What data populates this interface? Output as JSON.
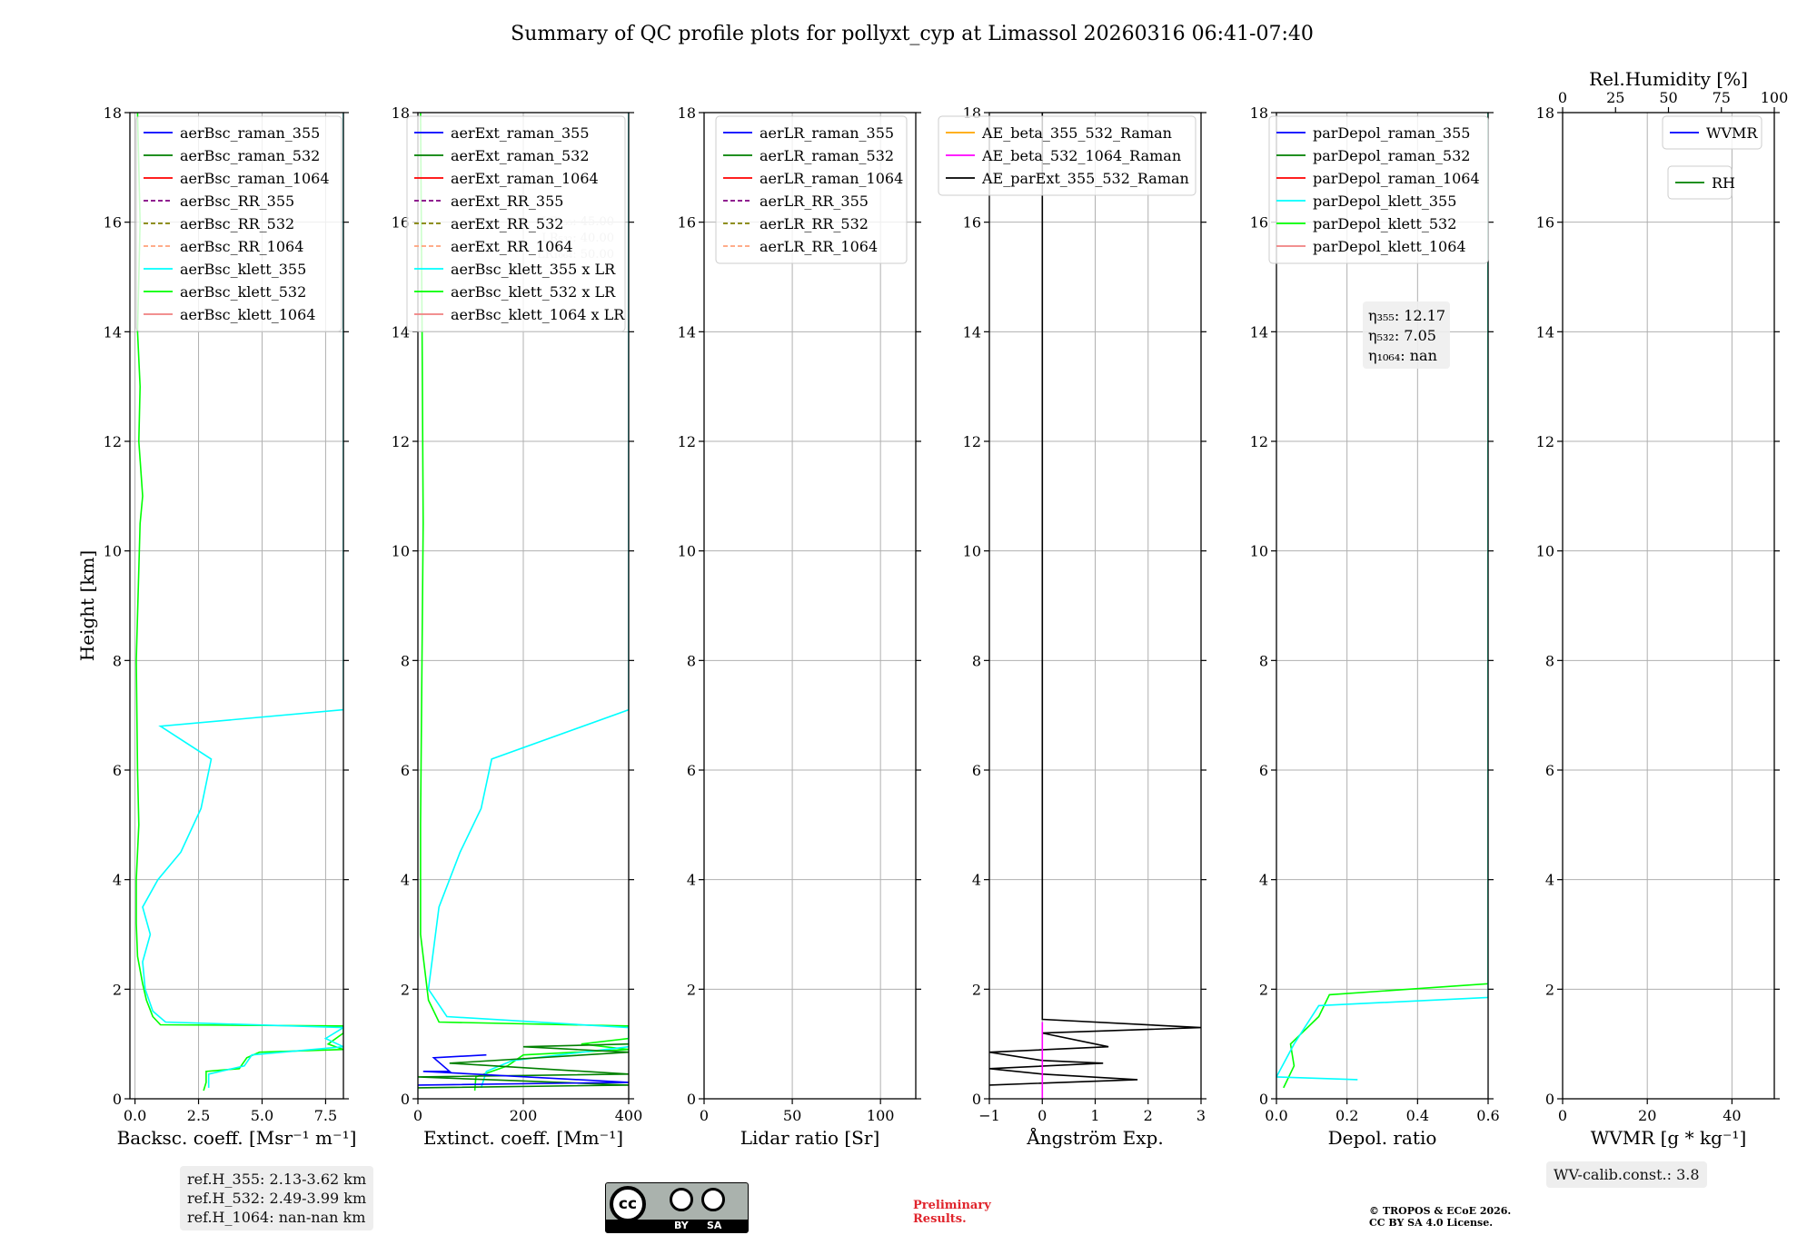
{
  "title": "Summary of QC profile plots for pollyxt_cyp at Limassol 20260316 06:41-07:40",
  "ylabel": "Height [km]",
  "panels": [
    {
      "xlabel": "Backsc. coeff. [Msr⁻¹ m⁻¹]",
      "xlim": [
        -0.2,
        8.2
      ],
      "xticks": [
        "0.0",
        "2.5",
        "5.0",
        "7.5"
      ],
      "legend": [
        {
          "label": "aerBsc_raman_355",
          "color": "#0000ff",
          "dash": false
        },
        {
          "label": "aerBsc_raman_532",
          "color": "#008000",
          "dash": false
        },
        {
          "label": "aerBsc_raman_1064",
          "color": "#ff0000",
          "dash": false
        },
        {
          "label": "aerBsc_RR_355",
          "color": "#800080",
          "dash": true
        },
        {
          "label": "aerBsc_RR_532",
          "color": "#808000",
          "dash": true
        },
        {
          "label": "aerBsc_RR_1064",
          "color": "#ffa07a",
          "dash": true
        },
        {
          "label": "aerBsc_klett_355",
          "color": "#00ffff",
          "dash": false
        },
        {
          "label": "aerBsc_klett_532",
          "color": "#00ff00",
          "dash": false
        },
        {
          "label": "aerBsc_klett_1064",
          "color": "#f08080",
          "dash": false
        }
      ]
    },
    {
      "xlabel": "Extinct. coeff. [Mm⁻¹]",
      "xlim": [
        0,
        400
      ],
      "xticks": [
        "0",
        "200",
        "400"
      ],
      "legend": [
        {
          "label": "aerExt_raman_355",
          "color": "#0000ff",
          "dash": false
        },
        {
          "label": "aerExt_raman_532",
          "color": "#008000",
          "dash": false
        },
        {
          "label": "aerExt_raman_1064",
          "color": "#ff0000",
          "dash": false
        },
        {
          "label": "aerExt_RR_355",
          "color": "#800080",
          "dash": true
        },
        {
          "label": "aerExt_RR_532",
          "color": "#808000",
          "dash": true
        },
        {
          "label": "aerExt_RR_1064",
          "color": "#ffa07a",
          "dash": true
        },
        {
          "label": "aerBsc_klett_355 x LR",
          "color": "#00ffff",
          "dash": false
        },
        {
          "label": "aerBsc_klett_532 x LR",
          "color": "#00ff00",
          "dash": false
        },
        {
          "label": "aerBsc_klett_1064 x LR",
          "color": "#f08080",
          "dash": false
        }
      ],
      "faint_lr": [
        "LR₃₅₅: 45.00",
        "LR₅₃₂: 40.00",
        "LR₁₀₆₄: 50.00"
      ]
    },
    {
      "xlabel": "Lidar ratio [Sr]",
      "xlim": [
        0,
        120
      ],
      "xticks": [
        "0",
        "50",
        "100"
      ],
      "legend": [
        {
          "label": "aerLR_raman_355",
          "color": "#0000ff",
          "dash": false
        },
        {
          "label": "aerLR_raman_532",
          "color": "#008000",
          "dash": false
        },
        {
          "label": "aerLR_raman_1064",
          "color": "#ff0000",
          "dash": false
        },
        {
          "label": "aerLR_RR_355",
          "color": "#800080",
          "dash": true
        },
        {
          "label": "aerLR_RR_532",
          "color": "#808000",
          "dash": true
        },
        {
          "label": "aerLR_RR_1064",
          "color": "#ffa07a",
          "dash": true
        }
      ]
    },
    {
      "xlabel": "Ångström Exp.",
      "xlim": [
        -1,
        3
      ],
      "xticks": [
        "−1",
        "0",
        "1",
        "2",
        "3"
      ],
      "legend": [
        {
          "label": "AE_beta_355_532_Raman",
          "color": "#ffa500",
          "dash": false
        },
        {
          "label": "AE_beta_532_1064_Raman",
          "color": "#ff00ff",
          "dash": false
        },
        {
          "label": "AE_parExt_355_532_Raman",
          "color": "#000000",
          "dash": false
        }
      ]
    },
    {
      "xlabel": "Depol. ratio",
      "xlim": [
        0,
        0.6
      ],
      "xticks": [
        "0.0",
        "0.2",
        "0.4",
        "0.6"
      ],
      "legend": [
        {
          "label": "parDepol_raman_355",
          "color": "#0000ff",
          "dash": false
        },
        {
          "label": "parDepol_raman_532",
          "color": "#008000",
          "dash": false
        },
        {
          "label": "parDepol_raman_1064",
          "color": "#ff0000",
          "dash": false
        },
        {
          "label": "parDepol_klett_355",
          "color": "#00ffff",
          "dash": false
        },
        {
          "label": "parDepol_klett_532",
          "color": "#00ff00",
          "dash": false
        },
        {
          "label": "parDepol_klett_1064",
          "color": "#f08080",
          "dash": false
        }
      ],
      "eta": [
        "η₃₅₅: 12.17",
        "η₅₃₂: 7.05",
        "η₁₀₆₄: nan"
      ]
    },
    {
      "xlabel": "WVMR [g * kg⁻¹]",
      "xlim": [
        0,
        50
      ],
      "xticks": [
        "0",
        "20",
        "40"
      ],
      "top_xlabel": "Rel.Humidity [%]",
      "top_xticks": [
        "0",
        "25",
        "50",
        "75",
        "100"
      ],
      "legend": [
        {
          "label": "WVMR",
          "color": "#0000ff",
          "dash": false
        },
        {
          "label": "RH",
          "color": "#008000",
          "dash": false
        }
      ]
    }
  ],
  "chart_data": [
    {
      "type": "line",
      "panel": "backscatter",
      "ylim": [
        0,
        18
      ],
      "yticks": [
        0,
        2,
        4,
        6,
        8,
        10,
        12,
        14,
        16,
        18
      ],
      "series": [
        {
          "name": "aerBsc_klett_532",
          "color": "#00ff00",
          "points": [
            [
              2.7,
              0.15
            ],
            [
              2.8,
              0.3
            ],
            [
              2.8,
              0.5
            ],
            [
              4.1,
              0.55
            ],
            [
              4.4,
              0.75
            ],
            [
              4.9,
              0.85
            ],
            [
              8.2,
              0.9
            ],
            [
              7.6,
              1.0
            ],
            [
              8.2,
              1.2
            ],
            [
              8.2,
              1.33
            ],
            [
              1.0,
              1.35
            ],
            [
              0.7,
              1.5
            ],
            [
              0.45,
              1.8
            ],
            [
              0.3,
              2.1
            ],
            [
              0.1,
              2.6
            ],
            [
              0.05,
              3.2
            ],
            [
              0.05,
              4.0
            ],
            [
              0.15,
              5.0
            ],
            [
              0.1,
              6.0
            ],
            [
              0.05,
              8.0
            ],
            [
              0.2,
              10.5
            ],
            [
              0.3,
              11.0
            ],
            [
              0.15,
              12.0
            ],
            [
              0.2,
              13.0
            ],
            [
              0.1,
              14.0
            ],
            [
              0.2,
              16.0
            ],
            [
              0.1,
              18.0
            ]
          ]
        },
        {
          "name": "aerBsc_klett_355",
          "color": "#00ffff",
          "points": [
            [
              2.9,
              0.2
            ],
            [
              2.9,
              0.45
            ],
            [
              4.3,
              0.6
            ],
            [
              4.6,
              0.8
            ],
            [
              8.2,
              0.95
            ],
            [
              7.5,
              1.1
            ],
            [
              8.2,
              1.3
            ],
            [
              1.2,
              1.4
            ],
            [
              0.7,
              1.6
            ],
            [
              0.4,
              2.0
            ],
            [
              0.3,
              2.5
            ],
            [
              0.6,
              3.0
            ],
            [
              0.3,
              3.5
            ],
            [
              0.9,
              4.0
            ],
            [
              1.8,
              4.5
            ],
            [
              2.6,
              5.3
            ],
            [
              3.0,
              6.2
            ],
            [
              1.0,
              6.8
            ],
            [
              8.2,
              7.1
            ],
            [
              8.2,
              8.5
            ],
            [
              8.2,
              10.0
            ],
            [
              8.2,
              11.0
            ],
            [
              8.2,
              12.1
            ],
            [
              8.2,
              13.0
            ],
            [
              8.2,
              13.9
            ],
            [
              8.2,
              16.0
            ],
            [
              8.2,
              18.0
            ]
          ]
        }
      ]
    },
    {
      "type": "line",
      "panel": "extinction",
      "ylim": [
        0,
        18
      ],
      "series": [
        {
          "name": "aerBsc_klett_532 x LR",
          "color": "#00ff00",
          "points": [
            [
              108,
              0.15
            ],
            [
              110,
              0.4
            ],
            [
              170,
              0.6
            ],
            [
              200,
              0.8
            ],
            [
              400,
              0.9
            ],
            [
              310,
              1.0
            ],
            [
              400,
              1.1
            ],
            [
              400,
              1.33
            ],
            [
              40,
              1.4
            ],
            [
              20,
              1.8
            ],
            [
              5,
              3.0
            ],
            [
              5,
              5.0
            ],
            [
              10,
              10.5
            ],
            [
              8,
              14.0
            ],
            [
              5,
              18.0
            ]
          ]
        },
        {
          "name": "aerBsc_klett_355 x LR",
          "color": "#00ffff",
          "points": [
            [
              120,
              0.2
            ],
            [
              130,
              0.5
            ],
            [
              180,
              0.7
            ],
            [
              400,
              0.95
            ],
            [
              400,
              1.3
            ],
            [
              55,
              1.5
            ],
            [
              20,
              2.0
            ],
            [
              40,
              3.5
            ],
            [
              80,
              4.5
            ],
            [
              120,
              5.3
            ],
            [
              140,
              6.2
            ],
            [
              400,
              7.1
            ],
            [
              400,
              10.0
            ],
            [
              400,
              12.0
            ],
            [
              400,
              13.9
            ],
            [
              400,
              18.0
            ]
          ]
        },
        {
          "name": "aerExt_raman_532",
          "color": "#008000",
          "points": [
            [
              0,
              0.2
            ],
            [
              400,
              0.25
            ],
            [
              0,
              0.4
            ],
            [
              400,
              0.45
            ],
            [
              60,
              0.65
            ],
            [
              400,
              0.85
            ],
            [
              200,
              0.95
            ],
            [
              400,
              1.0
            ]
          ]
        },
        {
          "name": "aerExt_raman_355",
          "color": "#0000ff",
          "points": [
            [
              0,
              0.25
            ],
            [
              400,
              0.3
            ],
            [
              10,
              0.5
            ],
            [
              60,
              0.5
            ],
            [
              30,
              0.75
            ],
            [
              130,
              0.8
            ]
          ]
        }
      ]
    },
    {
      "type": "line",
      "panel": "lidar_ratio",
      "ylim": [
        0,
        18
      ],
      "series": []
    },
    {
      "type": "line",
      "panel": "angstrom",
      "ylim": [
        0,
        18
      ],
      "series": [
        {
          "name": "AE_parExt_355_532_Raman",
          "color": "#000000",
          "points": [
            [
              0,
              18
            ],
            [
              0,
              1.45
            ],
            [
              3.0,
              1.3
            ],
            [
              0,
              1.2
            ],
            [
              1.25,
              0.95
            ],
            [
              -1,
              0.85
            ],
            [
              0,
              0.7
            ],
            [
              1.15,
              0.65
            ],
            [
              -1,
              0.55
            ],
            [
              0,
              0.45
            ],
            [
              1.8,
              0.35
            ],
            [
              -1,
              0.25
            ]
          ]
        },
        {
          "name": "AE_beta_532_1064_Raman",
          "color": "#ff00ff",
          "points": [
            [
              0,
              1.4
            ],
            [
              0,
              0
            ]
          ]
        }
      ]
    },
    {
      "type": "line",
      "panel": "depol",
      "ylim": [
        0,
        18
      ],
      "series": [
        {
          "name": "parDepol_klett_532",
          "color": "#00ff00",
          "points": [
            [
              0.02,
              0.2
            ],
            [
              0.05,
              0.6
            ],
            [
              0.04,
              1.0
            ],
            [
              0.12,
              1.5
            ],
            [
              0.15,
              1.9
            ],
            [
              0.6,
              2.1
            ],
            [
              0.6,
              4.0
            ],
            [
              0.6,
              9.0
            ],
            [
              0.6,
              13.2
            ],
            [
              0.6,
              15.5
            ],
            [
              0.6,
              18.0
            ]
          ]
        },
        {
          "name": "parDepol_klett_355",
          "color": "#00ffff",
          "points": [
            [
              0.23,
              0.35
            ],
            [
              0.0,
              0.4
            ],
            [
              0.05,
              1.0
            ],
            [
              0.12,
              1.7
            ],
            [
              0.6,
              1.85
            ],
            [
              0.6,
              6.0
            ],
            [
              0.6,
              10.0
            ],
            [
              0.6,
              14.6
            ],
            [
              0.6,
              18.0
            ]
          ]
        }
      ]
    },
    {
      "type": "line",
      "panel": "wvmr_rh",
      "ylim": [
        0,
        18
      ],
      "series": []
    }
  ],
  "refH": [
    "ref.H_355: 2.13-3.62 km",
    "ref.H_532: 2.49-3.99 km",
    "ref.H_1064: nan-nan km"
  ],
  "wv_calib": "WV-calib.const.: 3.8",
  "cc_by": "BY",
  "cc_sa": "SA",
  "preliminary": [
    "Preliminary",
    "Results."
  ],
  "copyright": [
    "© TROPOS & ECoE 2026.",
    "CC BY SA 4.0 License."
  ]
}
